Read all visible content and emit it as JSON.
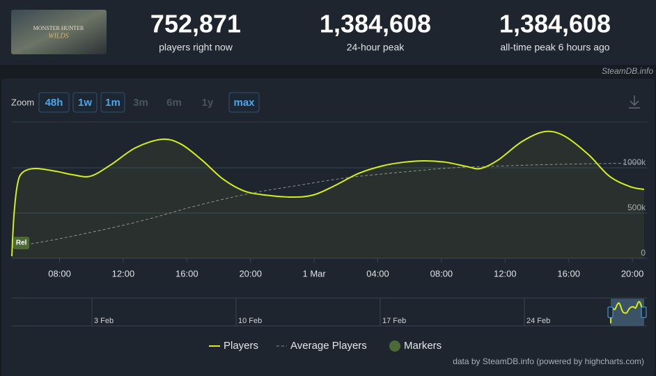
{
  "header": {
    "logo_text": [
      "MONSTER HUNTER",
      "WILDS"
    ],
    "stats": [
      {
        "value": "752,871",
        "label": "players right now"
      },
      {
        "value": "1,384,608",
        "label": "24-hour peak"
      },
      {
        "value": "1,384,608",
        "label": "all-time peak 6 hours ago"
      }
    ],
    "source": "SteamDB.info"
  },
  "zoom": {
    "label": "Zoom",
    "buttons": [
      {
        "label": "48h",
        "enabled": true
      },
      {
        "label": "1w",
        "enabled": true
      },
      {
        "label": "1m",
        "enabled": true
      },
      {
        "label": "3m",
        "enabled": false
      },
      {
        "label": "6m",
        "enabled": false
      },
      {
        "label": "1y",
        "enabled": false
      },
      {
        "label": "max",
        "enabled": true
      }
    ]
  },
  "chart_data": {
    "type": "line",
    "xlim": [
      5,
      44.74
    ],
    "ylim": [
      0,
      1500000
    ],
    "xticks": [
      {
        "value": 8,
        "label": "08:00"
      },
      {
        "value": 12,
        "label": "12:00"
      },
      {
        "value": 16,
        "label": "16:00"
      },
      {
        "value": 20,
        "label": "20:00"
      },
      {
        "value": 24,
        "label": "1 Mar"
      },
      {
        "value": 28,
        "label": "04:00"
      },
      {
        "value": 32,
        "label": "08:00"
      },
      {
        "value": 36,
        "label": "12:00"
      },
      {
        "value": 40,
        "label": "16:00"
      },
      {
        "value": 44,
        "label": "20:00"
      }
    ],
    "yticks": [
      0,
      {
        "value": 500000,
        "label": "500k"
      },
      {
        "value": 1000000,
        "label": "1000k"
      }
    ],
    "grid": true,
    "series": [
      {
        "name": "Players",
        "color": "#d2f01c",
        "x": [
          5.0,
          5.13,
          5.35,
          5.66,
          6.44,
          7.76,
          8.85,
          9.95,
          11.26,
          12.79,
          14.45,
          15.63,
          16.95,
          18.26,
          19.57,
          20.89,
          22.64,
          23.95,
          25.26,
          26.79,
          28.33,
          29.64,
          30.95,
          32.26,
          33.58,
          34.45,
          35.55,
          37.08,
          38.48,
          39.7,
          41.24,
          42.55,
          43.86,
          44.74
        ],
        "values": [
          23000,
          469000,
          815000,
          946000,
          992000,
          962000,
          923000,
          908000,
          1038000,
          1223000,
          1315000,
          1262000,
          1085000,
          877000,
          746000,
          700000,
          677000,
          700000,
          800000,
          938000,
          1023000,
          1062000,
          1077000,
          1062000,
          1015000,
          992000,
          1085000,
          1292000,
          1400000,
          1354000,
          1146000,
          908000,
          792000,
          762000
        ]
      },
      {
        "name": "Average Players",
        "color": "#8a8f96",
        "dashed": true,
        "x": [
          5.0,
          8.63,
          13.01,
          16.51,
          19.92,
          23.07,
          26.14,
          29.64,
          32.7,
          36.2,
          39.27,
          44.74
        ],
        "values": [
          123000,
          238000,
          408000,
          577000,
          715000,
          808000,
          892000,
          954000,
          1000000,
          1023000,
          1038000,
          1054000
        ]
      }
    ],
    "markers_legend": {
      "name": "Markers",
      "color": "#4b6a36"
    },
    "markers": [
      {
        "x": 5.05,
        "label": "Rel"
      }
    ],
    "navigator": {
      "labels": [
        "3 Feb",
        "10 Feb",
        "17 Feb",
        "24 Feb"
      ]
    },
    "credit": "data by SteamDB.info (powered by highcharts.com)"
  }
}
